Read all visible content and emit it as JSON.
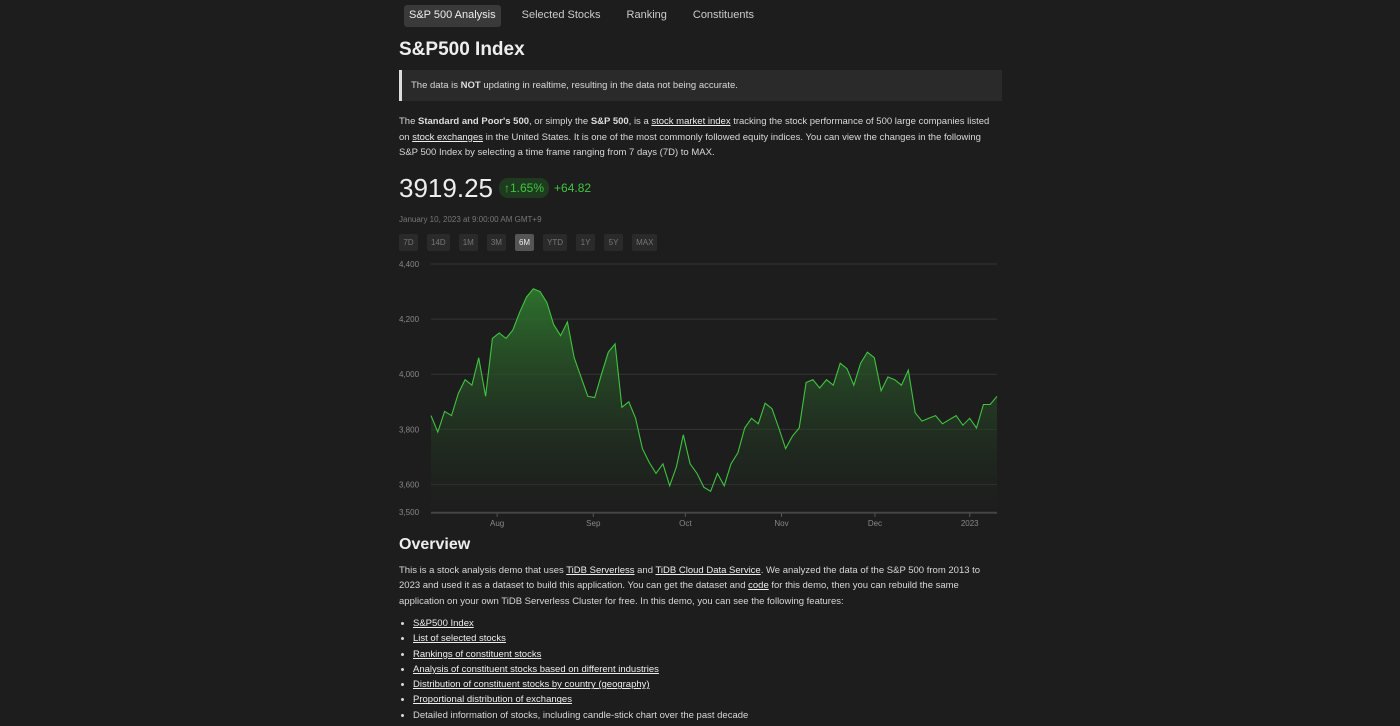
{
  "nav": [
    {
      "label": "S&P 500 Analysis",
      "active": true
    },
    {
      "label": "Selected Stocks"
    },
    {
      "label": "Ranking"
    },
    {
      "label": "Constituents"
    }
  ],
  "title": "S&P500 Index",
  "notice": [
    {
      "text": "The data is "
    },
    {
      "text": "NOT",
      "bold": true
    },
    {
      "text": " updating in realtime, resulting in the data not being accurate."
    }
  ],
  "intro": [
    {
      "text": "The "
    },
    {
      "text": "Standard and Poor's 500",
      "bold": true
    },
    {
      "text": ", or simply the "
    },
    {
      "text": "S&P 500",
      "bold": true
    },
    {
      "text": ", is a "
    },
    {
      "text": "stock market index",
      "link": true
    },
    {
      "text": " tracking the stock performance of 500 large companies listed on "
    },
    {
      "text": "stock exchanges",
      "link": true
    },
    {
      "text": " in the United States. It is one of the most commonly followed equity indices. You can view the changes in the following S&P 500 Index by selecting a time frame ranging from 7 days (7D) to MAX."
    }
  ],
  "price": "3919.25",
  "change_pct": "↑1.65%",
  "change": "+64.82",
  "timestamp": "January 10, 2023 at 9:00:00 AM GMT+9",
  "ranges": [
    {
      "label": "7D"
    },
    {
      "label": "14D"
    },
    {
      "label": "1M"
    },
    {
      "label": "3M"
    },
    {
      "label": "6M",
      "active": true
    },
    {
      "label": "YTD"
    },
    {
      "label": "1Y"
    },
    {
      "label": "5Y"
    },
    {
      "label": "MAX"
    }
  ],
  "chart_data": {
    "type": "area",
    "color": "#3fc43f",
    "grid": true,
    "values": [
      3850,
      3790,
      3865,
      3850,
      3930,
      3980,
      3960,
      4060,
      3920,
      4130,
      4150,
      4130,
      4160,
      4225,
      4280,
      4310,
      4300,
      4260,
      4180,
      4140,
      4190,
      4060,
      3990,
      3920,
      3915,
      4000,
      4080,
      4110,
      3880,
      3900,
      3840,
      3730,
      3680,
      3640,
      3675,
      3595,
      3665,
      3780,
      3675,
      3640,
      3590,
      3575,
      3640,
      3595,
      3675,
      3715,
      3805,
      3840,
      3820,
      3895,
      3875,
      3805,
      3730,
      3775,
      3805,
      3970,
      3980,
      3950,
      3980,
      3960,
      4040,
      4020,
      3960,
      4040,
      4080,
      4060,
      3940,
      3990,
      3980,
      3960,
      4015,
      3860,
      3830,
      3840,
      3850,
      3820,
      3835,
      3850,
      3815,
      3840,
      3805,
      3890,
      3890,
      3920
    ],
    "xlim": [
      0,
      83
    ],
    "xticks": [
      {
        "value": 9.7,
        "label": "Aug"
      },
      {
        "value": 23.8,
        "label": "Sep"
      },
      {
        "value": 37.3,
        "label": "Oct"
      },
      {
        "value": 51.4,
        "label": "Nov"
      },
      {
        "value": 65.1,
        "label": "Dec"
      },
      {
        "value": 79,
        "label": "2023"
      }
    ],
    "ylim": [
      3500,
      4400
    ],
    "yticks": [
      {
        "value": 3500,
        "label": "3,500"
      },
      {
        "value": 3600,
        "label": "3,600"
      },
      {
        "value": 3800,
        "label": "3,800"
      },
      {
        "value": 4000,
        "label": "4,000"
      },
      {
        "value": 4200,
        "label": "4,200"
      },
      {
        "value": 4400,
        "label": "4,400"
      }
    ]
  },
  "overview_title": "Overview",
  "overview": [
    {
      "text": "This is a stock analysis demo that uses "
    },
    {
      "text": "TiDB Serverless",
      "link": true
    },
    {
      "text": " and "
    },
    {
      "text": "TiDB Cloud Data Service",
      "link": true
    },
    {
      "text": ". We analyzed the data of the S&P 500 from 2013 to 2023 and used it as a dataset to build this application. You can get the dataset and "
    },
    {
      "text": "code",
      "link": true
    },
    {
      "text": " for this demo, then you can rebuild the same application on your own TiDB Serverless Cluster for free. In this demo, you can see the following features:"
    }
  ],
  "features": [
    {
      "text": "S&P500 Index",
      "link": true
    },
    {
      "text": "List of selected stocks",
      "link": true
    },
    {
      "text": "Rankings of constituent stocks",
      "link": true
    },
    {
      "text": "Analysis of constituent stocks based on different industries",
      "link": true
    },
    {
      "text": "Distribution of constituent stocks by country (geography)",
      "link": true
    },
    {
      "text": "Proportional distribution of exchanges",
      "link": true
    },
    {
      "text": "Detailed information of stocks, including candle-stick chart over the past decade"
    }
  ]
}
